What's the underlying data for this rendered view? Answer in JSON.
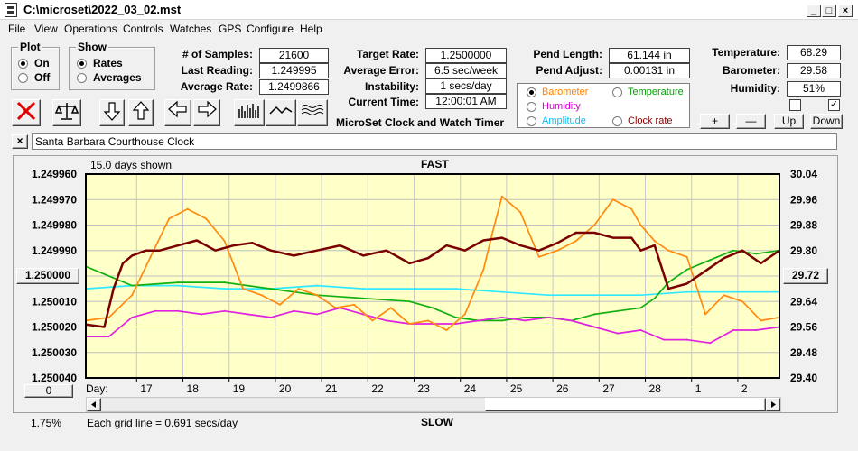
{
  "window": {
    "title": "C:\\microset\\2022_03_02.mst",
    "minimize": "_",
    "maximize": "□",
    "close": "×"
  },
  "menu": [
    "File",
    "View",
    "Operations",
    "Controls",
    "Watches",
    "GPS",
    "Configure",
    "Help"
  ],
  "plot_group": {
    "title": "Plot",
    "options": [
      {
        "label": "On",
        "selected": true
      },
      {
        "label": "Off",
        "selected": false
      }
    ]
  },
  "show_group": {
    "title": "Show",
    "options": [
      {
        "label": "Rates",
        "selected": true
      },
      {
        "label": "Averages",
        "selected": false
      }
    ]
  },
  "stats": {
    "samples_label": "# of Samples:",
    "samples_value": "21600",
    "last_label": "Last Reading:",
    "last_value": "1.249995",
    "avg_label": "Average Rate:",
    "avg_value": "1.2499866",
    "target_label": "Target Rate:",
    "target_value": "1.2500000",
    "err_label": "Average Error:",
    "err_value": "6.5 sec/week",
    "instab_label": "Instability:",
    "instab_value": "1 secs/day",
    "time_label": "Current Time:",
    "time_value": "12:00:01 AM",
    "pendlen_label": "Pend Length:",
    "pendlen_value": "61.144 in",
    "pendadj_label": "Pend Adjust:",
    "pendadj_value": "0.00131 in",
    "temp_label": "Temperature:",
    "temp_value": "68.29",
    "baro_label": "Barometer:",
    "baro_value": "29.58",
    "hum_label": "Humidity:",
    "hum_value": "51%"
  },
  "app_caption": "MicroSet Clock and Watch Timer",
  "series_select": [
    {
      "label": "Barometer",
      "color": "#ff7f00",
      "selected": true
    },
    {
      "label": "Temperature",
      "color": "#00a000",
      "selected": false
    },
    {
      "label": "Humidity",
      "color": "#d000d0",
      "selected": false
    },
    {
      "label": "Amplitude",
      "color": "#00c0ff",
      "selected": false
    },
    {
      "label": "Clock rate",
      "color": "#800000",
      "selected": false
    }
  ],
  "checkboxes": [
    {
      "checked": false
    },
    {
      "checked": true
    },
    {
      "checked_mark": "✓"
    }
  ],
  "right_buttons": {
    "plus": "+",
    "minus": "—",
    "up": "Up",
    "down": "Down"
  },
  "note": {
    "close": "×",
    "text": "Santa Barbara Courthouse Clock"
  },
  "chart_labels": {
    "days_shown": "15.0 days shown",
    "top": "FAST",
    "bottom": "SLOW",
    "grid_note": "Each grid line = 0.691 secs/day",
    "day_prefix": "Day:",
    "percent": "1.75%",
    "left_button": "1.250000",
    "right_button": "29.72",
    "zero_button": "0"
  },
  "chart_data": {
    "type": "line",
    "y_left_ticks": [
      "1.249960",
      "1.249970",
      "1.249980",
      "1.249990",
      "1.250000",
      "1.250010",
      "1.250020",
      "1.250030",
      "1.250040"
    ],
    "y_right_ticks": [
      "30.04",
      "29.96",
      "29.88",
      "29.80",
      "29.72",
      "29.64",
      "29.56",
      "29.48",
      "29.40"
    ],
    "x_ticks": [
      "17",
      "18",
      "19",
      "20",
      "21",
      "22",
      "23",
      "24",
      "25",
      "26",
      "27",
      "28",
      "1",
      "2"
    ],
    "x_range_days": [
      0,
      15
    ],
    "series": [
      {
        "name": "Clock rate",
        "color": "#7a0000",
        "axis": "left",
        "x": [
          0,
          0.4,
          0.6,
          0.8,
          1.0,
          1.3,
          1.6,
          2.0,
          2.4,
          2.8,
          3.2,
          3.6,
          4.0,
          4.5,
          5.0,
          5.5,
          6.0,
          6.5,
          7.0,
          7.4,
          7.8,
          8.2,
          8.6,
          9.0,
          9.4,
          9.8,
          10.2,
          10.6,
          11.0,
          11.4,
          11.8,
          12.0,
          12.3,
          12.6,
          13.0,
          13.4,
          13.8,
          14.2,
          14.6,
          15.0
        ],
        "y": [
          1.250019,
          1.25002,
          1.250005,
          1.249995,
          1.249992,
          1.24999,
          1.24999,
          1.249988,
          1.249986,
          1.24999,
          1.249988,
          1.249987,
          1.24999,
          1.249992,
          1.24999,
          1.249988,
          1.249992,
          1.24999,
          1.249995,
          1.249993,
          1.249988,
          1.24999,
          1.249986,
          1.249985,
          1.249988,
          1.24999,
          1.249987,
          1.249983,
          1.249983,
          1.249985,
          1.249985,
          1.24999,
          1.249988,
          1.250005,
          1.250003,
          1.249998,
          1.249993,
          1.24999,
          1.249995,
          1.24999
        ]
      },
      {
        "name": "Barometer",
        "color": "#ff8a10",
        "axis": "right",
        "x": [
          0,
          0.5,
          1.0,
          1.4,
          1.8,
          2.2,
          2.6,
          3.0,
          3.4,
          3.8,
          4.2,
          4.6,
          5.0,
          5.4,
          5.8,
          6.2,
          6.6,
          7.0,
          7.4,
          7.8,
          8.2,
          8.6,
          8.8,
          9.0,
          9.4,
          9.8,
          10.2,
          10.6,
          11.0,
          11.4,
          11.8,
          12.0,
          12.3,
          12.6,
          13.0,
          13.4,
          13.8,
          14.2,
          14.6,
          15.0
        ],
        "y": [
          29.58,
          29.59,
          29.66,
          29.78,
          29.9,
          29.93,
          29.9,
          29.83,
          29.68,
          29.66,
          29.63,
          29.68,
          29.66,
          29.62,
          29.63,
          29.58,
          29.62,
          29.57,
          29.58,
          29.55,
          29.6,
          29.74,
          29.86,
          29.97,
          29.92,
          29.78,
          29.8,
          29.83,
          29.88,
          29.96,
          29.93,
          29.88,
          29.83,
          29.8,
          29.78,
          29.6,
          29.66,
          29.64,
          29.58,
          29.59
        ]
      },
      {
        "name": "Temperature",
        "color": "#10b010",
        "axis": "right",
        "x": [
          0,
          1,
          2,
          3,
          4,
          5,
          6,
          7,
          7.5,
          8,
          8.5,
          9,
          9.5,
          10,
          10.5,
          11,
          11.5,
          12,
          12.3,
          12.6,
          13,
          13.5,
          14,
          14.5,
          15
        ],
        "y": [
          29.75,
          29.69,
          29.7,
          29.7,
          29.68,
          29.66,
          29.65,
          29.64,
          29.62,
          29.59,
          29.58,
          29.58,
          29.59,
          29.59,
          29.58,
          29.6,
          29.61,
          29.62,
          29.65,
          29.7,
          29.74,
          29.77,
          29.8,
          29.79,
          29.8
        ]
      },
      {
        "name": "Amplitude",
        "color": "#30e8ff",
        "axis": "right",
        "x": [
          0,
          1,
          2,
          3,
          4,
          5,
          6,
          7,
          8,
          9,
          10,
          11,
          12,
          13,
          14,
          15
        ],
        "y": [
          29.68,
          29.69,
          29.69,
          29.68,
          29.68,
          29.69,
          29.68,
          29.68,
          29.68,
          29.67,
          29.66,
          29.66,
          29.66,
          29.67,
          29.67,
          29.67
        ]
      },
      {
        "name": "Humidity",
        "color": "#e020e0",
        "axis": "right",
        "x": [
          0,
          0.5,
          1.0,
          1.5,
          2.0,
          2.5,
          3.0,
          3.5,
          4.0,
          4.5,
          5.0,
          5.5,
          6.0,
          6.5,
          7.0,
          7.5,
          8.0,
          8.5,
          9.0,
          9.5,
          10.0,
          10.5,
          11.0,
          11.5,
          12.0,
          12.5,
          13.0,
          13.5,
          14.0,
          14.5,
          15.0
        ],
        "y": [
          29.53,
          29.53,
          29.59,
          29.61,
          29.61,
          29.6,
          29.61,
          29.6,
          29.59,
          29.61,
          29.6,
          29.62,
          29.6,
          29.58,
          29.57,
          29.57,
          29.57,
          29.58,
          29.59,
          29.58,
          29.59,
          29.58,
          29.56,
          29.54,
          29.55,
          29.52,
          29.52,
          29.51,
          29.55,
          29.55,
          29.56
        ]
      }
    ]
  }
}
